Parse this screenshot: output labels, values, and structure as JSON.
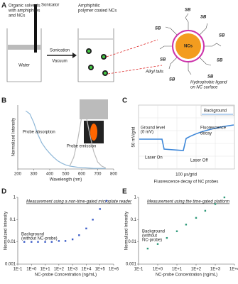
{
  "panel_labels": [
    "A",
    "B",
    "C",
    "D",
    "E"
  ],
  "panel_a": {
    "solvent_label": [
      "Organic solvents",
      "with amphiphiles",
      "and NCs"
    ],
    "sonicator": "Sonicator",
    "coated_label": [
      "Amphiphilic",
      "polymer coated NCs"
    ],
    "sonication": "Sonication",
    "vacuum": "Vacuum",
    "water": "Water",
    "core": "NCs",
    "sb": "SB",
    "alkyl": "Alkyl tails",
    "ligand": [
      "Hydrophobic ligand",
      "on NC surface"
    ]
  },
  "panel_c": {
    "ground": [
      "Ground level",
      "(0 mV)"
    ],
    "decay": [
      "Fluorescence",
      "decay"
    ],
    "laser_on": "Laser On",
    "laser_off": "Laser Off",
    "background": "Background",
    "ygrid": "50 mV/grid",
    "xgrid": "100 µs/grid",
    "caption": "Fluorescence decay of NC probes"
  },
  "chart_data": [
    {
      "type": "line",
      "ylabel": "Normalized Intensity",
      "xlabel": "Wavelength (nm)",
      "x": [
        250,
        275,
        300,
        325,
        350,
        375,
        400,
        425,
        450,
        475,
        500,
        525,
        550,
        575,
        600,
        625,
        650,
        675,
        700,
        725,
        750
      ],
      "series": [
        {
          "name": "Probe absorption",
          "color": "#8fb8d8",
          "values": [
            1.0,
            0.95,
            0.8,
            0.6,
            0.45,
            0.35,
            0.27,
            0.2,
            0.14,
            0.1,
            0.07,
            0.05,
            0.04,
            0.03,
            0.025,
            0.02,
            0.015,
            0.01,
            0.01,
            0.01,
            0.01
          ]
        },
        {
          "name": "Probe emission",
          "color": "#bbbbbb",
          "values": [
            null,
            null,
            null,
            null,
            null,
            null,
            null,
            null,
            null,
            null,
            null,
            0.05,
            0.2,
            0.5,
            0.9,
            0.95,
            0.6,
            0.3,
            0.12,
            0.05,
            0.02
          ]
        }
      ],
      "xlim": [
        200,
        800
      ],
      "xticks": [
        200,
        300,
        400,
        500,
        600,
        700,
        800
      ],
      "ylim": [
        0,
        1.1
      ]
    },
    {
      "type": "scatter",
      "title": "Measurement using a non-time-gated microplate reader",
      "annotation": [
        "Background",
        "(without NC-probe)"
      ],
      "ylabel": "Normalized Intensity",
      "xlabel": "NC-probe Concentration (ng/mL)",
      "log": true,
      "color": "#3a5bc7",
      "x": [
        0.3,
        1,
        3,
        10,
        30,
        100,
        300,
        1000,
        3000,
        10000,
        30000,
        100000,
        300000
      ],
      "values": [
        0.01,
        0.01,
        0.01,
        0.01,
        0.01,
        0.011,
        0.011,
        0.013,
        0.02,
        0.04,
        0.1,
        0.3,
        0.7
      ],
      "xlim": [
        0.1,
        1000000
      ],
      "xticks": [
        {
          "value": 0.1,
          "label": "1E-1"
        },
        {
          "value": 1,
          "label": "1E+0"
        },
        {
          "value": 10,
          "label": "1E+1"
        },
        {
          "value": 100,
          "label": "1E+2"
        },
        {
          "value": 1000,
          "label": "1E+3"
        },
        {
          "value": 10000,
          "label": "1E+4"
        },
        {
          "value": 100000,
          "label": "1E+5"
        },
        {
          "value": 1000000,
          "label": "1E+6"
        }
      ],
      "ylim": [
        0.001,
        1
      ],
      "yticks": [
        0.001,
        0.01,
        0.1,
        1
      ]
    },
    {
      "type": "scatter",
      "title": "Measurement using the time-gated platform",
      "annotation": [
        "Background",
        "(without",
        "NC-probe)"
      ],
      "ylabel": "Normalized Intensity",
      "xlabel": "NC-probe Concentration (ng/mL)",
      "log": true,
      "color": "#2e9a7a",
      "x": [
        0.3,
        1,
        3,
        10,
        30,
        100,
        300,
        1000,
        3000
      ],
      "values": [
        0.005,
        0.008,
        0.015,
        0.03,
        0.06,
        0.12,
        0.25,
        0.5,
        1.0
      ],
      "xlim": [
        0.1,
        10000
      ],
      "xticks": [
        {
          "value": 0.1,
          "label": "1E-1"
        },
        {
          "value": 1,
          "label": "1E+0"
        },
        {
          "value": 10,
          "label": "1E+1"
        },
        {
          "value": 100,
          "label": "1E+2"
        },
        {
          "value": 1000,
          "label": "1E+3"
        },
        {
          "value": 10000,
          "label": "1E+4"
        }
      ],
      "ylim": [
        0.001,
        1
      ],
      "yticks": [
        0.001,
        0.01,
        0.1,
        1
      ]
    }
  ]
}
